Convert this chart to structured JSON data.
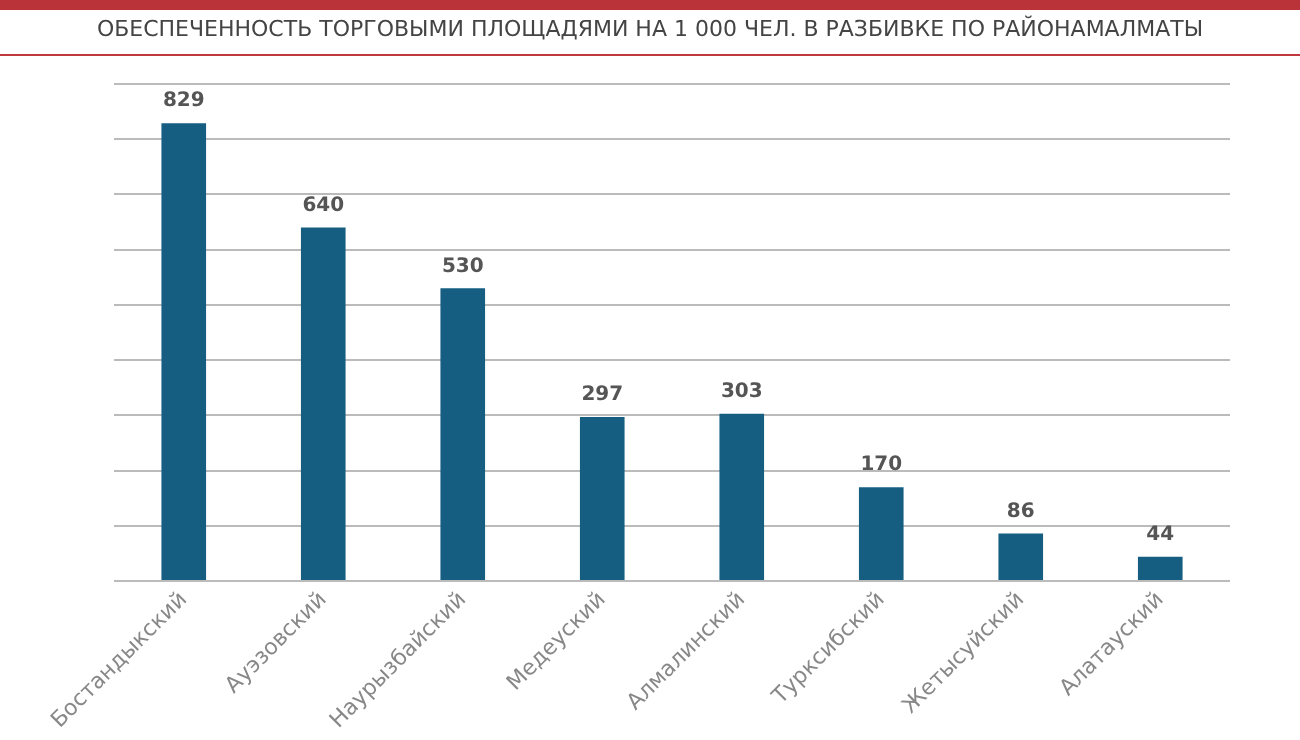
{
  "chart_data": {
    "type": "bar",
    "title": "ОБЕСПЕЧЕННОСТЬ ТОРГОВЫМИ ПЛОЩАДЯМИ НА 1 000 ЧЕЛ. В РАЗБИВКЕ ПО РАЙОНАМАЛМАТЫ",
    "categories": [
      "Бостандыкский",
      "Ауэзовский",
      "Наурызбайский",
      "Медеуский",
      "Алмалинский",
      "Турксибский",
      "Жетысуйский",
      "Алатауский"
    ],
    "values": [
      829,
      640,
      530,
      297,
      303,
      170,
      86,
      44
    ],
    "color": "#155e82",
    "data_labels": true,
    "ylim": [
      0,
      900
    ],
    "yticks": [
      {
        "value": 0,
        "label": null
      },
      {
        "value": 100,
        "label": null
      },
      {
        "value": 200,
        "label": null
      },
      {
        "value": 300,
        "label": null
      },
      {
        "value": 400,
        "label": null
      },
      {
        "value": 500,
        "label": null
      },
      {
        "value": 600,
        "label": null
      },
      {
        "value": 700,
        "label": null
      },
      {
        "value": 800,
        "label": null
      },
      {
        "value": 900,
        "label": null
      }
    ],
    "grid": "y",
    "tick_labels": "x"
  }
}
